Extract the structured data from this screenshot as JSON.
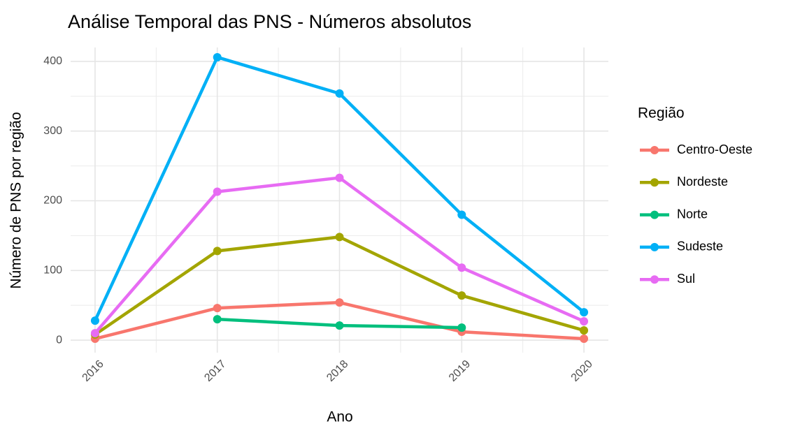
{
  "chart_data": {
    "type": "line",
    "title": "Análise Temporal das PNS - Números absolutos",
    "x_label": "Ano",
    "y_label": "Número de PNS por região",
    "x": [
      2016,
      2017,
      2018,
      2019,
      2020
    ],
    "series": [
      {
        "name": "Centro-Oeste",
        "color": "#F8766D",
        "values": [
          2,
          46,
          54,
          12,
          2
        ]
      },
      {
        "name": "Nordeste",
        "color": "#A3A500",
        "values": [
          8,
          128,
          148,
          64,
          14
        ]
      },
      {
        "name": "Norte",
        "color": "#00BF7D",
        "values": [
          null,
          30,
          21,
          18,
          null
        ]
      },
      {
        "name": "Sudeste",
        "color": "#00B0F6",
        "values": [
          28,
          406,
          354,
          180,
          40
        ]
      },
      {
        "name": "Sul",
        "color": "#E76BF3",
        "values": [
          10,
          213,
          233,
          104,
          27
        ]
      }
    ],
    "legend_title": "Região",
    "xlim": [
      2015.8,
      2020.2
    ],
    "xticks": [
      2016,
      2017,
      2018,
      2019,
      2020
    ],
    "ylim": [
      -18,
      420
    ],
    "yticks": [
      0,
      100,
      200,
      300,
      400
    ],
    "grid": true,
    "legend": "right"
  }
}
